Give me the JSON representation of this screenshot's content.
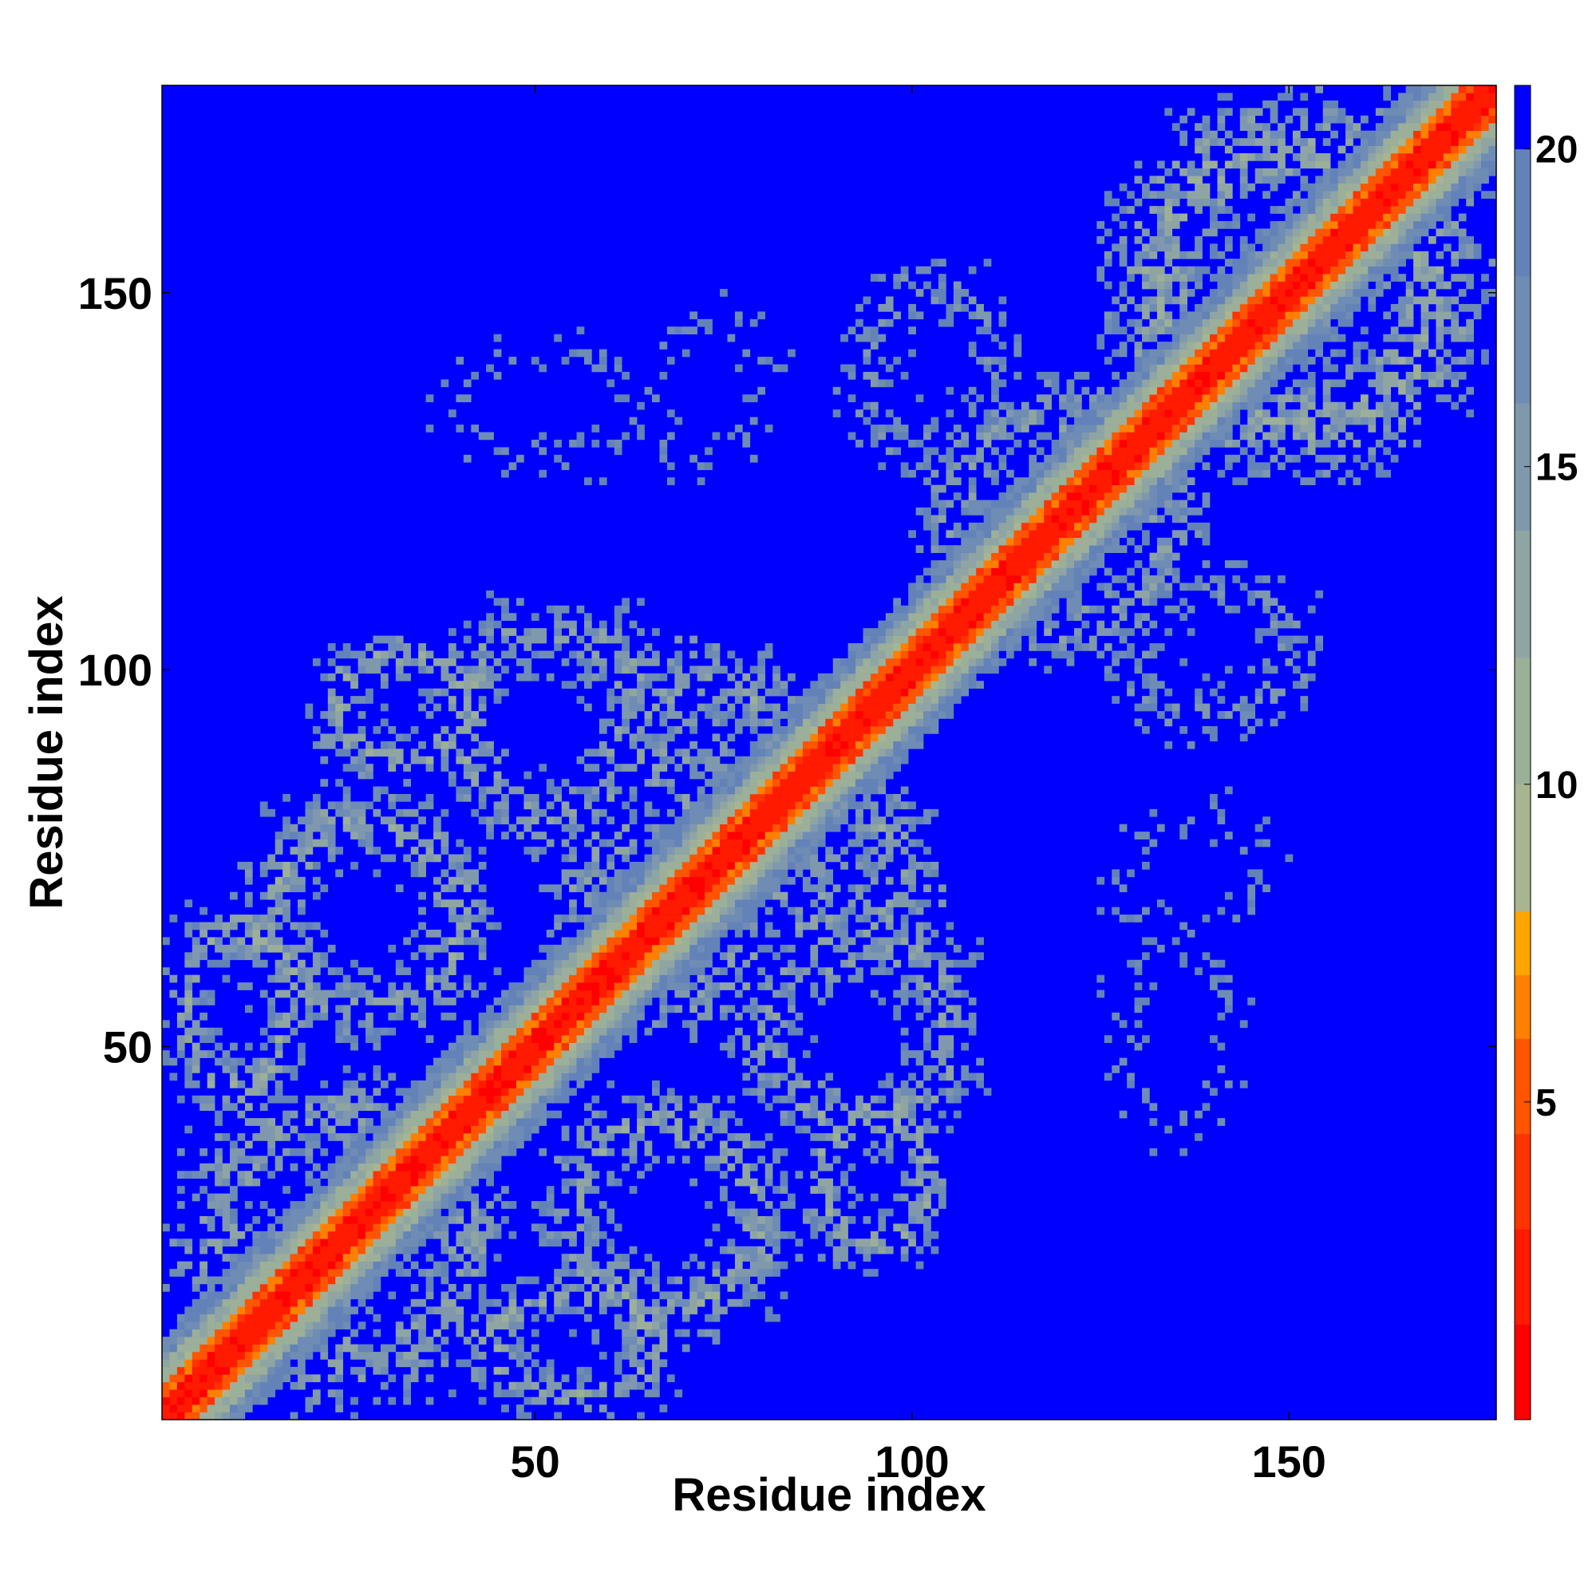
{
  "chart_data": {
    "type": "heatmap",
    "title": "",
    "xlabel": "Residue index",
    "ylabel": "Residue index",
    "x_range": [
      1,
      177
    ],
    "y_range": [
      1,
      177
    ],
    "x_ticks": [
      50,
      100,
      150
    ],
    "y_ticks": [
      50,
      100,
      150
    ],
    "n_residues": 177,
    "value_range": [
      0,
      21
    ],
    "colorbar": {
      "ticks": [
        5,
        10,
        15,
        20
      ],
      "levels": [
        {
          "max": 1.5,
          "color": "#ff0000"
        },
        {
          "max": 3,
          "color": "#ff1a00"
        },
        {
          "max": 4.5,
          "color": "#ff3300"
        },
        {
          "max": 6,
          "color": "#ff5500"
        },
        {
          "max": 7,
          "color": "#ff8000"
        },
        {
          "max": 8,
          "color": "#ffa500"
        },
        {
          "max": 10,
          "color": "#a8b590"
        },
        {
          "max": 12,
          "color": "#9caf99"
        },
        {
          "max": 14,
          "color": "#8fa5a3"
        },
        {
          "max": 16,
          "color": "#7f98ad"
        },
        {
          "max": 18,
          "color": "#6f8cb5"
        },
        {
          "max": 20,
          "color": "#6382b8"
        },
        {
          "max": 999,
          "color": "#0000ff"
        }
      ]
    },
    "grid": false,
    "legend": "colorbar-right",
    "contact_blocks": [
      {
        "x": [
          1,
          48
        ],
        "y": [
          1,
          48
        ],
        "strength": 0.6
      },
      {
        "x": [
          50,
          95
        ],
        "y": [
          50,
          95
        ],
        "strength": 0.55
      },
      {
        "x": [
          100,
          140
        ],
        "y": [
          100,
          140
        ],
        "strength": 0.55
      },
      {
        "x": [
          125,
          177
        ],
        "y": [
          125,
          177
        ],
        "strength": 0.7
      },
      {
        "x": [
          1,
          20
        ],
        "y": [
          40,
          70
        ],
        "strength": 0.7
      },
      {
        "x": [
          40,
          70
        ],
        "y": [
          1,
          20
        ],
        "strength": 0.7
      },
      {
        "x": [
          20,
          45
        ],
        "y": [
          85,
          105
        ],
        "strength": 0.7
      },
      {
        "x": [
          85,
          105
        ],
        "y": [
          20,
          45
        ],
        "strength": 0.7
      },
      {
        "x": [
          50,
          85
        ],
        "y": [
          10,
          45
        ],
        "strength": 0.65
      },
      {
        "x": [
          10,
          45
        ],
        "y": [
          50,
          85
        ],
        "strength": 0.65
      },
      {
        "x": [
          55,
          90
        ],
        "y": [
          60,
          105
        ],
        "strength": 0.6
      },
      {
        "x": [
          60,
          105
        ],
        "y": [
          55,
          90
        ],
        "strength": 0.6
      },
      {
        "x": [
          75,
          110
        ],
        "y": [
          35,
          70
        ],
        "strength": 0.6
      },
      {
        "x": [
          35,
          70
        ],
        "y": [
          75,
          110
        ],
        "strength": 0.6
      },
      {
        "x": [
          125,
          145
        ],
        "y": [
          35,
          70
        ],
        "strength": 0.35
      },
      {
        "x": [
          35,
          70
        ],
        "y": [
          125,
          145
        ],
        "strength": 0.35
      },
      {
        "x": [
          90,
          115
        ],
        "y": [
          125,
          155
        ],
        "strength": 0.45
      },
      {
        "x": [
          125,
          155
        ],
        "y": [
          90,
          115
        ],
        "strength": 0.45
      },
      {
        "x": [
          60,
          85
        ],
        "y": [
          125,
          150
        ],
        "strength": 0.3
      },
      {
        "x": [
          125,
          150
        ],
        "y": [
          60,
          85
        ],
        "strength": 0.3
      }
    ]
  }
}
